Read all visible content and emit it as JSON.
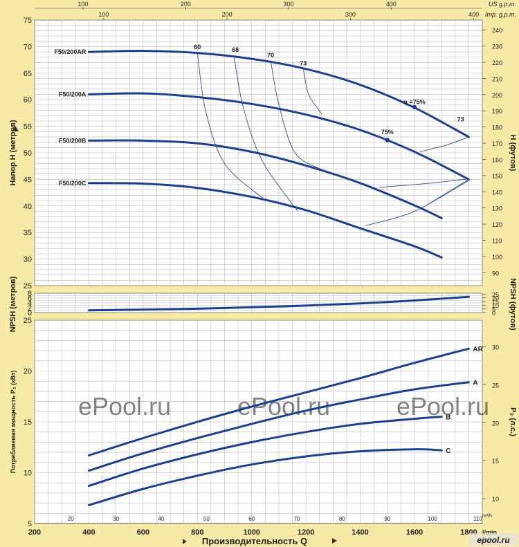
{
  "top_axis": {
    "us_label": "US g.p.m.",
    "imp_label": "Imp. g.p.m.",
    "us_ticks": [
      100,
      200,
      300,
      400
    ],
    "imp_ticks": [
      100,
      200,
      300,
      400
    ]
  },
  "bottom_axis": {
    "title": "Производительность Q",
    "unit_lmin": "l/min",
    "unit_m3h": "m³/h",
    "lmin_ticks": [
      200,
      400,
      600,
      800,
      1000,
      1200,
      1400,
      1600,
      1800
    ],
    "m3h_ticks": [
      20,
      30,
      40,
      50,
      60,
      70,
      80,
      90,
      100,
      110
    ]
  },
  "watermark": "ePool.ru",
  "logo": "epool.ru",
  "chart_data": [
    {
      "type": "line",
      "name": "head",
      "ylabel_left": "Напор H  (метров)",
      "ylabel_right": "H  (футов)",
      "xlim": [
        200,
        1850
      ],
      "ylim": [
        25,
        75
      ],
      "yticks_left": [
        25,
        30,
        35,
        40,
        45,
        50,
        55,
        60,
        65,
        70,
        75
      ],
      "yticks_right": [
        90,
        100,
        110,
        120,
        130,
        140,
        150,
        160,
        170,
        180,
        190,
        200,
        210,
        220,
        230,
        240
      ],
      "series": [
        {
          "name": "F50/200AR",
          "x": [
            400,
            600,
            800,
            1000,
            1200,
            1400,
            1600,
            1800
          ],
          "y": [
            69,
            69.2,
            68.8,
            67.7,
            65.8,
            62.8,
            58.5,
            53
          ]
        },
        {
          "name": "F50/200A",
          "x": [
            400,
            600,
            800,
            1000,
            1200,
            1400,
            1600,
            1800
          ],
          "y": [
            61,
            61.2,
            60.5,
            59.2,
            57.2,
            54.3,
            50.2,
            45
          ]
        },
        {
          "name": "F50/200B",
          "x": [
            400,
            600,
            800,
            1000,
            1200,
            1400,
            1600,
            1700
          ],
          "y": [
            52.3,
            52.3,
            51.8,
            50.2,
            47.6,
            44.3,
            40.1,
            37.7
          ]
        },
        {
          "name": "F50/200C",
          "x": [
            400,
            600,
            800,
            1000,
            1200,
            1400,
            1600,
            1700
          ],
          "y": [
            44.3,
            44.2,
            43.4,
            41.7,
            39.2,
            35.8,
            32.4,
            30.3
          ]
        }
      ],
      "efficiency_labels": [
        {
          "text": "60",
          "x": 800,
          "y": 69.5
        },
        {
          "text": "68",
          "x": 940,
          "y": 69
        },
        {
          "text": "70",
          "x": 1070,
          "y": 68
        },
        {
          "text": "73",
          "x": 1190,
          "y": 66.5
        },
        {
          "text": "η =75%",
          "x": 1600,
          "y": 59.2
        },
        {
          "text": "73",
          "x": 1770,
          "y": 55.9
        },
        {
          "text": "75%",
          "x": 1500,
          "y": 53.5
        }
      ],
      "efficiency_points": [
        {
          "x": 1600,
          "y": 58.6
        },
        {
          "x": 1500,
          "y": 52.4
        }
      ],
      "iso_efficiency_lines": [
        {
          "name": "60",
          "x": [
            800,
            830,
            900,
            1040
          ],
          "y": [
            68.9,
            58,
            48,
            41.5
          ]
        },
        {
          "name": "68",
          "x": [
            935,
            970,
            1040,
            1170
          ],
          "y": [
            68.1,
            58.4,
            48.4,
            39
          ]
        },
        {
          "name": "70",
          "x": [
            1070,
            1100,
            1160,
            1260
          ],
          "y": [
            67.4,
            59.1,
            50,
            46.8
          ]
        },
        {
          "name": "73",
          "x": [
            1190,
            1210,
            1260
          ],
          "y": [
            66,
            61,
            57.2
          ]
        },
        {
          "name": "73-right",
          "x": [
            1800,
            1720,
            1620
          ],
          "y": [
            53,
            51.5,
            50.2
          ]
        },
        {
          "name": "75-right",
          "x": [
            1800,
            1640,
            1470
          ],
          "y": [
            45.1,
            44.2,
            43.5
          ]
        },
        {
          "name": "73-low",
          "x": [
            1800,
            1720,
            1640
          ],
          "y": [
            45,
            42.5,
            40
          ]
        },
        {
          "name": "73-low-2",
          "x": [
            1800,
            1600,
            1420
          ],
          "y": [
            44.8,
            39,
            36.3
          ]
        }
      ]
    },
    {
      "type": "line",
      "name": "npsh",
      "ylabel_left": "NPSH  (метров)",
      "ylabel_right": "NPSH  (футов)",
      "xlim": [
        200,
        1850
      ],
      "ylim": [
        0,
        8
      ],
      "yticks_left": [
        0,
        2,
        4,
        6,
        8
      ],
      "yticks_right": [
        0,
        5,
        10,
        15,
        20,
        25
      ],
      "series": [
        {
          "name": "NPSH",
          "x": [
            400,
            600,
            800,
            1000,
            1200,
            1400,
            1600,
            1800
          ],
          "y": [
            0.95,
            1.2,
            1.6,
            2.2,
            2.9,
            3.8,
            5.0,
            6.5
          ]
        }
      ]
    },
    {
      "type": "line",
      "name": "power",
      "ylabel_left": "Потребляемая мощность P₂ (кВт)",
      "ylabel_right": "P₂ (л.с.)",
      "xlim": [
        200,
        1850
      ],
      "ylim": [
        5,
        25
      ],
      "yticks_left": [
        5,
        10,
        15,
        20,
        25
      ],
      "yticks_right": [
        10,
        15,
        20,
        25,
        30
      ],
      "series": [
        {
          "name": "AR",
          "x": [
            400,
            600,
            800,
            1000,
            1200,
            1400,
            1600,
            1800
          ],
          "y": [
            11.7,
            13.4,
            15.0,
            16.5,
            17.9,
            19.3,
            20.8,
            22.2
          ]
        },
        {
          "name": "A",
          "x": [
            400,
            600,
            800,
            1000,
            1200,
            1400,
            1600,
            1800
          ],
          "y": [
            10.2,
            11.9,
            13.4,
            14.8,
            16.1,
            17.2,
            18.2,
            18.9
          ]
        },
        {
          "name": "B",
          "x": [
            400,
            600,
            800,
            1000,
            1200,
            1400,
            1600,
            1700
          ],
          "y": [
            8.7,
            10.4,
            11.8,
            13.0,
            14.0,
            14.8,
            15.3,
            15.5
          ]
        },
        {
          "name": "C",
          "x": [
            400,
            600,
            800,
            1000,
            1200,
            1400,
            1600,
            1700
          ],
          "y": [
            6.8,
            8.4,
            9.7,
            10.8,
            11.6,
            12.1,
            12.3,
            12.2
          ]
        }
      ]
    }
  ]
}
